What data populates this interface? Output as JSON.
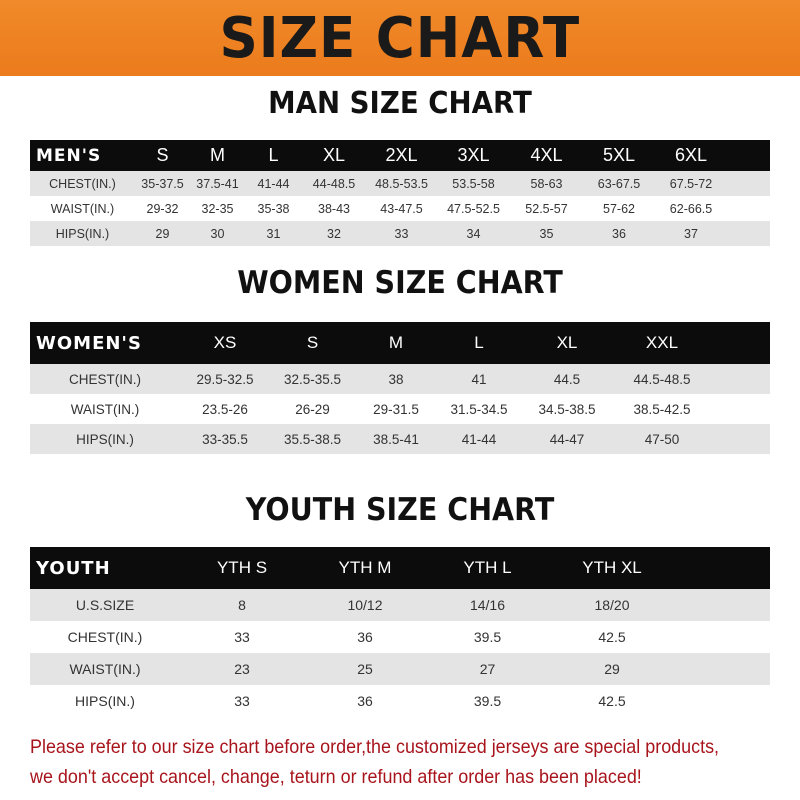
{
  "banner_title": "SIZE CHART",
  "men": {
    "title": "MAN SIZE CHART",
    "header": [
      "MEN'S",
      "S",
      "M",
      "L",
      "XL",
      "2XL",
      "3XL",
      "4XL",
      "5XL",
      "6XL"
    ],
    "rows": [
      [
        "CHEST(IN.)",
        "35-37.5",
        "37.5-41",
        "41-44",
        "44-48.5",
        "48.5-53.5",
        "53.5-58",
        "58-63",
        "63-67.5",
        "67.5-72"
      ],
      [
        "WAIST(IN.)",
        "29-32",
        "32-35",
        "35-38",
        "38-43",
        "43-47.5",
        "47.5-52.5",
        "52.5-57",
        "57-62",
        "62-66.5"
      ],
      [
        "HIPS(IN.)",
        "29",
        "30",
        "31",
        "32",
        "33",
        "34",
        "35",
        "36",
        "37"
      ]
    ]
  },
  "women": {
    "title": "WOMEN SIZE CHART",
    "header": [
      "WOMEN'S",
      "XS",
      "S",
      "M",
      "L",
      "XL",
      "XXL"
    ],
    "rows": [
      [
        "CHEST(IN.)",
        "29.5-32.5",
        "32.5-35.5",
        "38",
        "41",
        "44.5",
        "44.5-48.5"
      ],
      [
        "WAIST(IN.)",
        "23.5-26",
        "26-29",
        "29-31.5",
        "31.5-34.5",
        "34.5-38.5",
        "38.5-42.5"
      ],
      [
        "HIPS(IN.)",
        "33-35.5",
        "35.5-38.5",
        "38.5-41",
        "41-44",
        "44-47",
        "47-50"
      ]
    ]
  },
  "youth": {
    "title": "YOUTH SIZE CHART",
    "header": [
      "YOUTH",
      "YTH S",
      "YTH M",
      "YTH L",
      "YTH XL"
    ],
    "rows": [
      [
        "U.S.SIZE",
        "8",
        "10/12",
        "14/16",
        "18/20"
      ],
      [
        "CHEST(IN.)",
        "33",
        "36",
        "39.5",
        "42.5"
      ],
      [
        "WAIST(IN.)",
        "23",
        "25",
        "27",
        "29"
      ],
      [
        "HIPS(IN.)",
        "33",
        "36",
        "39.5",
        "42.5"
      ]
    ]
  },
  "notice": [
    "Please refer to our size chart before order,the customized jerseys are special products,",
    "we don't accept cancel, change, teturn or refund after order has been placed!"
  ],
  "colors": {
    "banner": "#ec7b1c",
    "header_row": "#0c0c0c",
    "stripe": "#e4e4e4",
    "notice": "#a8141c"
  }
}
